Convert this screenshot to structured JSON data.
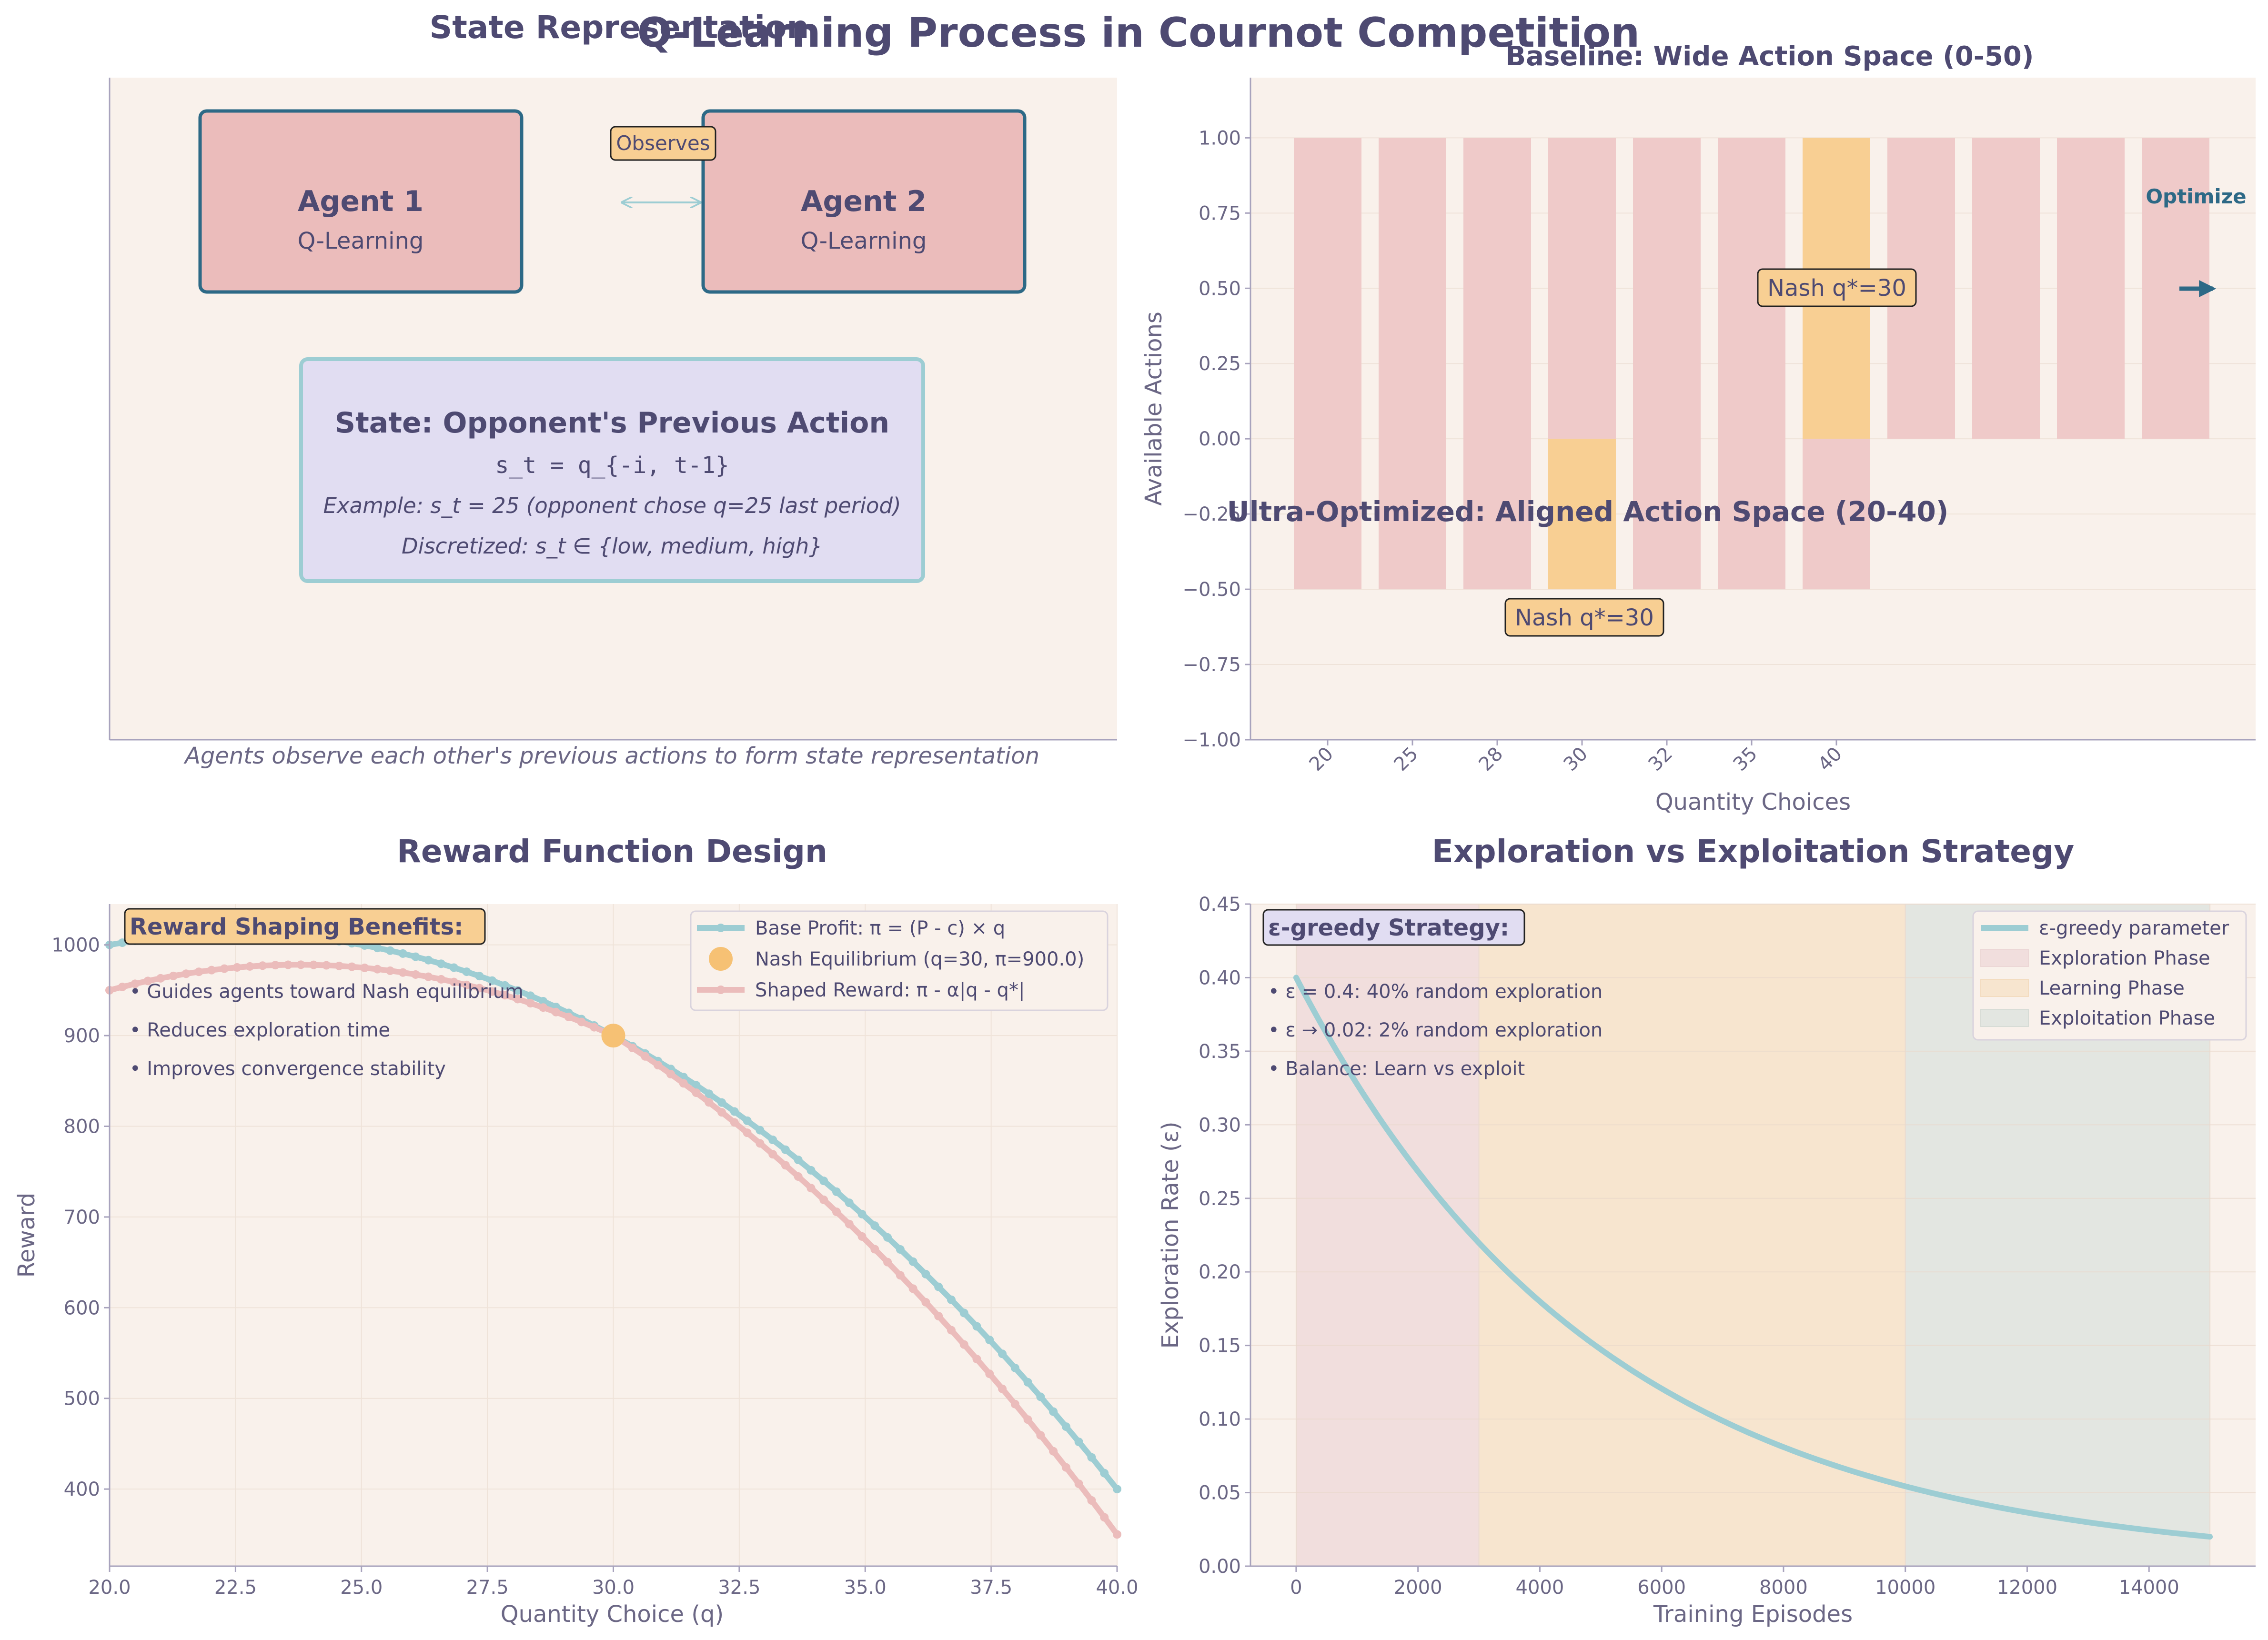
{
  "figure_title": "Q-Learning Process in Cournot Competition",
  "colors": {
    "title": "#4e4a72",
    "text": "#4e4a72",
    "axis_text": "#6b6785",
    "panel_bg": "#f9f1eb",
    "pink": "#ebbcbb",
    "pink_light": "#efcac9",
    "orange": "#f8cf93",
    "teal": "#9dcdd3",
    "navy": "#2d6986",
    "lavender": "#e1ddf2",
    "orange_dot": "#f6c174",
    "green_band": "#e3e6e1",
    "box_fill": "#f8cf93"
  },
  "panel1": {
    "title": "State Representation",
    "agent1": {
      "name": "Agent 1",
      "sub": "Q-Learning"
    },
    "agent2": {
      "name": "Agent 2",
      "sub": "Q-Learning"
    },
    "observes_label": "Observes",
    "state_box": {
      "title": "State: Opponent's Previous Action",
      "formula": "s_t = q_{-i, t-1}",
      "example": "Example: s_t = 25 (opponent chose q=25 last period)",
      "discretized": "Discretized: s_t ∈ {low, medium, high}"
    },
    "caption": "Agents observe each other's previous actions to form state representation"
  },
  "panel2": {
    "title_top": "Baseline: Wide Action Space (0-50)",
    "title_bottom": "Ultra-Optimized: Aligned Action Space (20-40)",
    "xlabel": "Quantity Choices",
    "ylabel": "Available Actions",
    "tick_labels": [
      "20",
      "25",
      "28",
      "30",
      "32",
      "35",
      "40"
    ],
    "nash_label_top": "Nash q*=30",
    "nash_label_bottom": "Nash q*=30",
    "optimize_label": "Optimize",
    "chart_data": {
      "type": "bar",
      "ylim": [
        -1.0,
        1.2
      ],
      "yticks": [
        -1.0,
        -0.75,
        -0.5,
        -0.25,
        0.0,
        0.25,
        0.5,
        0.75,
        1.0
      ],
      "baseline_bars": {
        "count": 11,
        "bottom": 0,
        "top": 1.0,
        "highlight_index": 6
      },
      "optimized_bars": {
        "count": 7,
        "bottom": -0.5,
        "top": 0,
        "highlight_index": 3
      },
      "ytick_labels": [
        "−1.00",
        "−0.75",
        "−0.50",
        "−0.25",
        "0.00",
        "0.25",
        "0.50",
        "0.75",
        "1.00"
      ]
    }
  },
  "panel3": {
    "title": "Reward Function Design",
    "xlabel": "Quantity Choice (q)",
    "ylabel": "Reward",
    "legend": {
      "base": "Base Profit: π = (P - c) × q",
      "nash": "Nash Equilibrium (q=30, π=900.0)",
      "shaped": "Shaped Reward: π - α|q - q*|"
    },
    "benefits_title": "Reward Shaping Benefits:",
    "benefits": [
      "• Guides agents toward Nash equilibrium",
      "• Reduces exploration time",
      "• Improves convergence stability"
    ],
    "chart_data": {
      "type": "line",
      "x_range": [
        20,
        40
      ],
      "xlim": [
        20,
        40
      ],
      "ylim": [
        315,
        1045
      ],
      "xticks": [
        20.0,
        22.5,
        25.0,
        27.5,
        30.0,
        32.5,
        35.0,
        37.5,
        40.0
      ],
      "xtick_labels": [
        "20.0",
        "22.5",
        "25.0",
        "27.5",
        "30.0",
        "32.5",
        "35.0",
        "37.5",
        "40.0"
      ],
      "yticks": [
        400,
        500,
        600,
        700,
        800,
        900,
        1000
      ],
      "series": [
        {
          "name": "Base Profit: π = (P - c) × q",
          "formula": "q*(100 - 2q - 10)",
          "points": 80
        },
        {
          "name": "Shaped Reward: π - α|q - q*|",
          "formula": "q*(100 - 2q - 10) - 5|q - 30|",
          "points": 80
        }
      ],
      "nash_point": {
        "x": 30,
        "y": 900
      }
    }
  },
  "panel4": {
    "title": "Exploration vs Exploitation Strategy",
    "xlabel": "Training Episodes",
    "ylabel": "Exploration Rate (ε)",
    "strategy_title": "ε-greedy Strategy:",
    "strategy_lines": [
      "• ε = 0.4: 40% random exploration",
      "• ε → 0.02: 2% random exploration",
      "• Balance: Learn vs exploit"
    ],
    "legend": {
      "curve": "ε-greedy parameter",
      "exploration": "Exploration Phase",
      "learning": "Learning Phase",
      "exploitation": "Exploitation Phase"
    },
    "chart_data": {
      "type": "line",
      "xlim": [
        -750,
        15750
      ],
      "ylim": [
        0,
        0.45
      ],
      "xticks": [
        0,
        2000,
        4000,
        6000,
        8000,
        10000,
        12000,
        14000
      ],
      "yticks": [
        0.0,
        0.05,
        0.1,
        0.15,
        0.2,
        0.25,
        0.3,
        0.35,
        0.4,
        0.45
      ],
      "ytick_labels": [
        "0.00",
        "0.05",
        "0.10",
        "0.15",
        "0.20",
        "0.25",
        "0.30",
        "0.35",
        "0.40",
        "0.45"
      ],
      "epsilon": {
        "start": 0.4,
        "end": 0.02,
        "episodes": 15000
      },
      "phases": [
        {
          "name": "Exploration Phase",
          "start": 0,
          "end": 3000
        },
        {
          "name": "Learning Phase",
          "start": 3000,
          "end": 10000
        },
        {
          "name": "Exploitation Phase",
          "start": 10000,
          "end": 15000
        }
      ]
    }
  }
}
